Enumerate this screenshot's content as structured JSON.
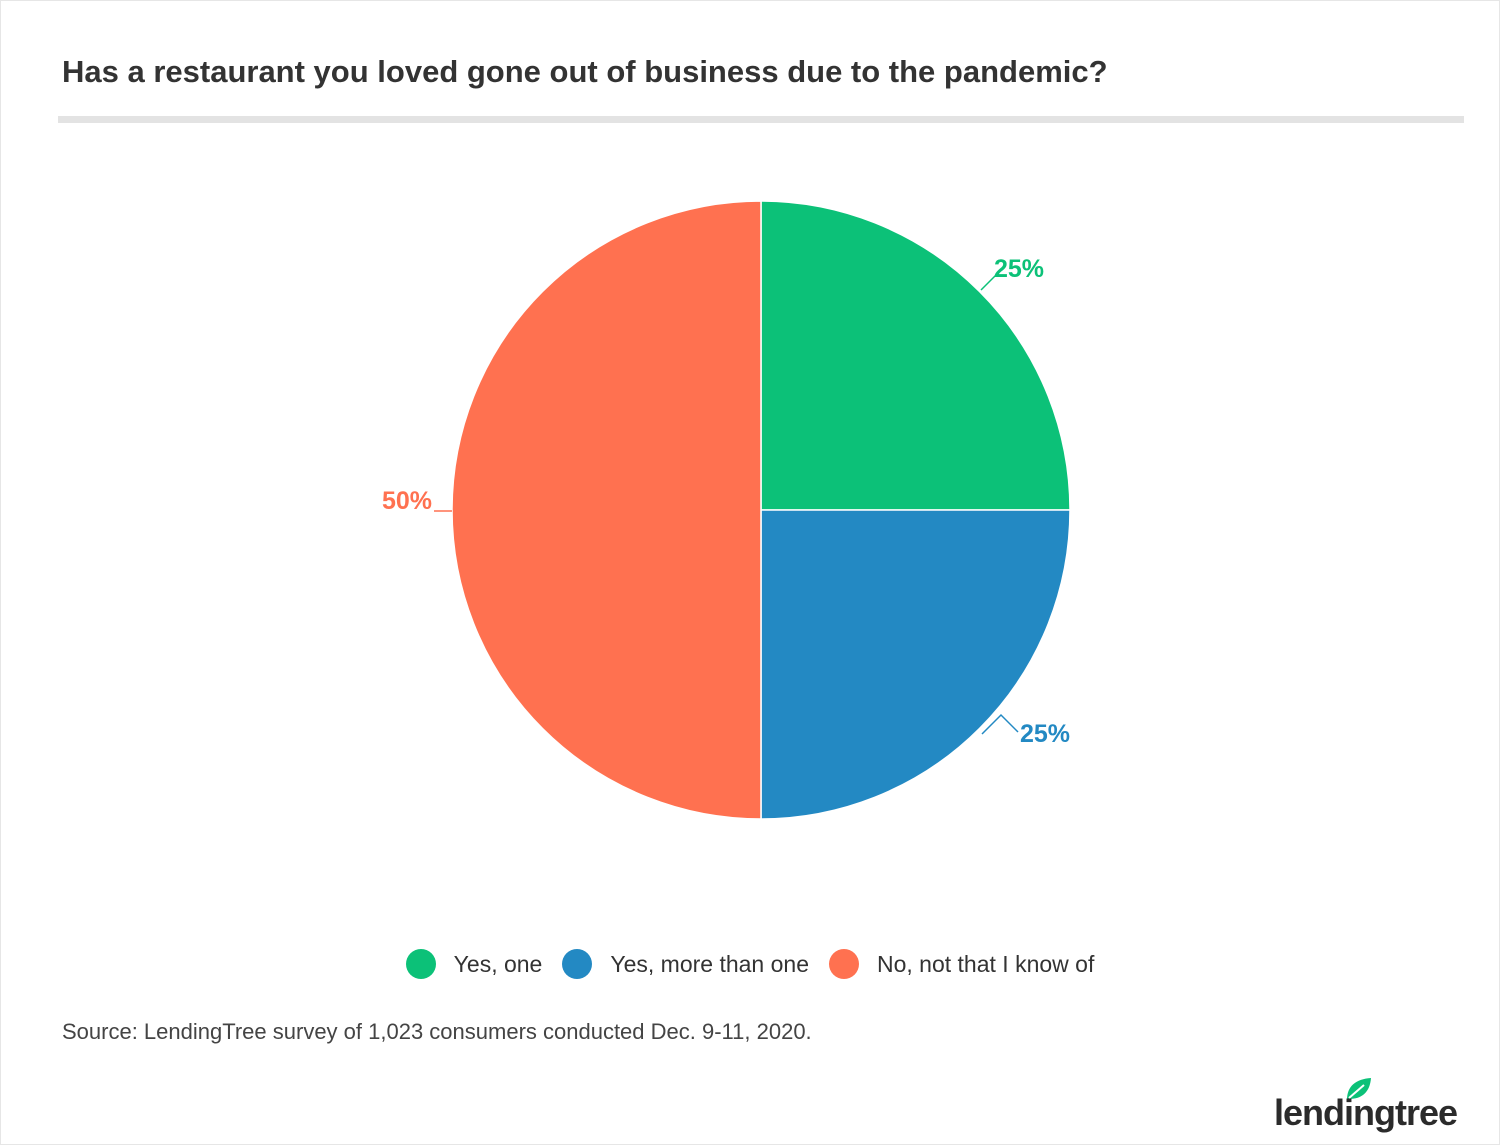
{
  "chart_data": {
    "type": "pie",
    "title": "Has a restaurant you loved gone out of business due to the pandemic?",
    "slices": [
      {
        "label": "Yes, one",
        "value": 25,
        "display": "25%",
        "color": "#0cc178"
      },
      {
        "label": "Yes, more than one",
        "value": 25,
        "display": "25%",
        "color": "#2389c3"
      },
      {
        "label": "No, not that I know of",
        "value": 50,
        "display": "50%",
        "color": "#ff7150"
      }
    ],
    "legend_position": "bottom"
  },
  "legend": {
    "items": [
      {
        "label": "Yes, one",
        "color": "#0cc178"
      },
      {
        "label": "Yes, more than one",
        "color": "#2389c3"
      },
      {
        "label": "No, not that I know of",
        "color": "#ff7150"
      }
    ]
  },
  "source": "Source: LendingTree survey of 1,023 consumers conducted Dec. 9-11, 2020.",
  "logo": {
    "text": "lendingtree",
    "color": "#0cc178"
  }
}
